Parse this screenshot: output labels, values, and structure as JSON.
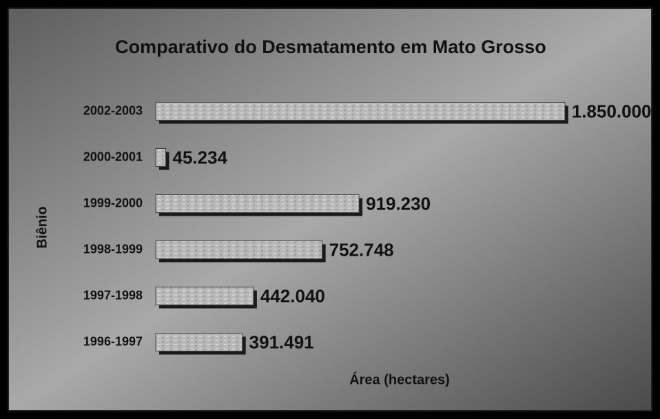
{
  "chart_data": {
    "type": "bar",
    "orientation": "horizontal",
    "title": "Comparativo do Desmatamento em Mato Grosso",
    "xlabel": "Área (hectares)",
    "ylabel": "Biênio",
    "categories": [
      "2002-2003",
      "2000-2001",
      "1999-2000",
      "1998-1999",
      "1997-1998",
      "1996-1997"
    ],
    "values": [
      1850000,
      45234,
      919230,
      752748,
      442040,
      391491
    ],
    "value_labels": [
      "1.850.000",
      "45.234",
      "919.230",
      "752.748",
      "442.040",
      "391.491"
    ],
    "color": "#b4b4b4",
    "xlim": [
      0,
      2000000
    ]
  }
}
